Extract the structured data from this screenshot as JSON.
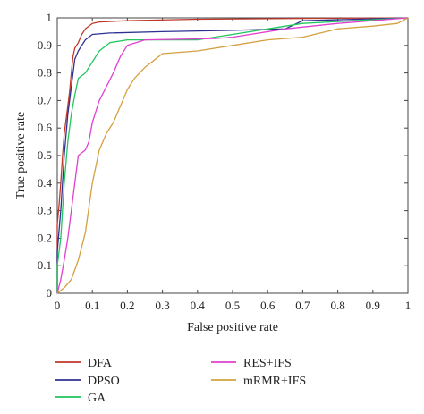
{
  "chart_data": {
    "type": "line",
    "title": "",
    "xlabel": "False positive rate",
    "ylabel": "True positive rate",
    "xlim": [
      0,
      1
    ],
    "ylim": [
      0,
      1
    ],
    "x_ticks": [
      0,
      0.1,
      0.2,
      0.3,
      0.4,
      0.5,
      0.6,
      0.7,
      0.8,
      0.9,
      1
    ],
    "x_tick_labels": [
      "0",
      "0.1",
      "0.2",
      "0.3",
      "0.4",
      "0.5",
      "0.6",
      "0.7",
      "0.8",
      "0.9",
      "1"
    ],
    "y_ticks": [
      0,
      0.1,
      0.2,
      0.3,
      0.4,
      0.5,
      0.6,
      0.7,
      0.8,
      0.9,
      1
    ],
    "y_tick_labels": [
      "0",
      "0.1",
      "0.2",
      "0.3",
      "0.4",
      "0.5",
      "0.6",
      "0.7",
      "0.8",
      "0.9",
      "1"
    ],
    "grid": false,
    "legend_position": "bottom",
    "series": [
      {
        "name": "DFA",
        "color": "#c0392b",
        "points": [
          [
            0,
            0
          ],
          [
            0,
            0.25
          ],
          [
            0.005,
            0.32
          ],
          [
            0.01,
            0.4
          ],
          [
            0.015,
            0.5
          ],
          [
            0.02,
            0.58
          ],
          [
            0.025,
            0.63
          ],
          [
            0.03,
            0.68
          ],
          [
            0.035,
            0.73
          ],
          [
            0.04,
            0.8
          ],
          [
            0.045,
            0.86
          ],
          [
            0.05,
            0.89
          ],
          [
            0.06,
            0.91
          ],
          [
            0.07,
            0.94
          ],
          [
            0.08,
            0.96
          ],
          [
            0.1,
            0.98
          ],
          [
            0.12,
            0.985
          ],
          [
            0.2,
            0.99
          ],
          [
            0.4,
            0.995
          ],
          [
            0.7,
            0.998
          ],
          [
            1,
            1
          ]
        ]
      },
      {
        "name": "DPSO",
        "color": "#2e3192",
        "points": [
          [
            0,
            0
          ],
          [
            0,
            0.15
          ],
          [
            0.01,
            0.3
          ],
          [
            0.02,
            0.5
          ],
          [
            0.03,
            0.65
          ],
          [
            0.04,
            0.75
          ],
          [
            0.05,
            0.85
          ],
          [
            0.06,
            0.88
          ],
          [
            0.07,
            0.9
          ],
          [
            0.08,
            0.92
          ],
          [
            0.1,
            0.94
          ],
          [
            0.15,
            0.945
          ],
          [
            0.3,
            0.95
          ],
          [
            0.5,
            0.955
          ],
          [
            0.65,
            0.96
          ],
          [
            0.7,
            0.99
          ],
          [
            1,
            1
          ]
        ]
      },
      {
        "name": "GA",
        "color": "#22c55e",
        "points": [
          [
            0,
            0
          ],
          [
            0,
            0.1
          ],
          [
            0.01,
            0.2
          ],
          [
            0.02,
            0.4
          ],
          [
            0.03,
            0.55
          ],
          [
            0.04,
            0.65
          ],
          [
            0.05,
            0.72
          ],
          [
            0.06,
            0.78
          ],
          [
            0.08,
            0.8
          ],
          [
            0.1,
            0.84
          ],
          [
            0.12,
            0.88
          ],
          [
            0.15,
            0.91
          ],
          [
            0.2,
            0.92
          ],
          [
            0.4,
            0.92
          ],
          [
            0.5,
            0.94
          ],
          [
            0.6,
            0.96
          ],
          [
            0.7,
            0.98
          ],
          [
            1,
            1
          ]
        ]
      },
      {
        "name": "RES+IFS",
        "color": "#e040d0",
        "points": [
          [
            0,
            0
          ],
          [
            0.01,
            0.05
          ],
          [
            0.02,
            0.12
          ],
          [
            0.03,
            0.2
          ],
          [
            0.04,
            0.3
          ],
          [
            0.05,
            0.4
          ],
          [
            0.06,
            0.5
          ],
          [
            0.08,
            0.52
          ],
          [
            0.09,
            0.55
          ],
          [
            0.1,
            0.62
          ],
          [
            0.12,
            0.7
          ],
          [
            0.14,
            0.75
          ],
          [
            0.16,
            0.8
          ],
          [
            0.18,
            0.86
          ],
          [
            0.2,
            0.9
          ],
          [
            0.25,
            0.92
          ],
          [
            0.45,
            0.925
          ],
          [
            0.5,
            0.93
          ],
          [
            0.65,
            0.96
          ],
          [
            0.8,
            0.98
          ],
          [
            1,
            1
          ]
        ]
      },
      {
        "name": "mRMR+IFS",
        "color": "#d4a040",
        "points": [
          [
            0,
            0
          ],
          [
            0.02,
            0.02
          ],
          [
            0.04,
            0.05
          ],
          [
            0.06,
            0.12
          ],
          [
            0.08,
            0.22
          ],
          [
            0.1,
            0.4
          ],
          [
            0.12,
            0.52
          ],
          [
            0.14,
            0.58
          ],
          [
            0.16,
            0.62
          ],
          [
            0.18,
            0.68
          ],
          [
            0.2,
            0.74
          ],
          [
            0.22,
            0.78
          ],
          [
            0.25,
            0.82
          ],
          [
            0.28,
            0.85
          ],
          [
            0.3,
            0.87
          ],
          [
            0.4,
            0.88
          ],
          [
            0.5,
            0.9
          ],
          [
            0.6,
            0.92
          ],
          [
            0.7,
            0.93
          ],
          [
            0.8,
            0.96
          ],
          [
            0.9,
            0.97
          ],
          [
            0.97,
            0.98
          ],
          [
            1,
            1
          ]
        ]
      }
    ]
  }
}
